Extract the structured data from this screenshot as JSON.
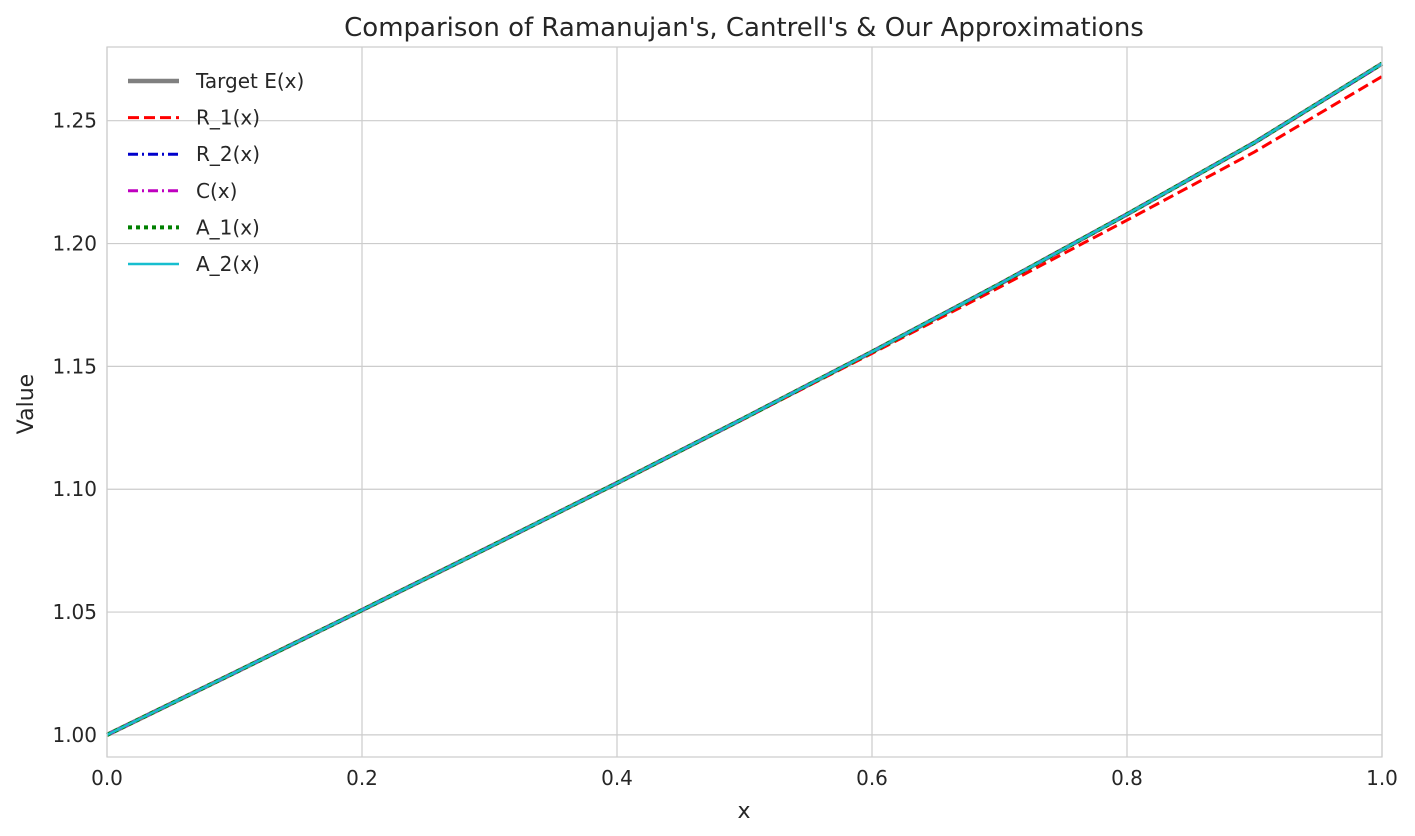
{
  "chart_data": {
    "type": "line",
    "title": "Comparison of Ramanujan's, Cantrell's & Our Approximations",
    "xlabel": "x",
    "ylabel": "Value",
    "xlim": [
      0.0,
      1.0
    ],
    "ylim": [
      0.991,
      1.28
    ],
    "xticks": [
      "0.0",
      "0.2",
      "0.4",
      "0.6",
      "0.8",
      "1.0"
    ],
    "yticks": [
      "1.00",
      "1.05",
      "1.10",
      "1.15",
      "1.20",
      "1.25"
    ],
    "grid": true,
    "legend_position": "top-left",
    "x": [
      0.0,
      0.1,
      0.2,
      0.3,
      0.4,
      0.5,
      0.6,
      0.7,
      0.8,
      0.9,
      1.0
    ],
    "series": [
      {
        "name": "Target E(x)",
        "color": "#808080",
        "style": "solid-thick",
        "values": [
          1.0,
          1.0253,
          1.0508,
          1.0765,
          1.1025,
          1.129,
          1.1559,
          1.1835,
          1.2119,
          1.2411,
          1.2732
        ]
      },
      {
        "name": "R_1(x)",
        "color": "#ff0000",
        "style": "dashed",
        "values": [
          1.0,
          1.0253,
          1.0508,
          1.0765,
          1.1025,
          1.1288,
          1.1553,
          1.1822,
          1.2095,
          1.2373,
          1.268
        ]
      },
      {
        "name": "R_2(x)",
        "color": "#0000cc",
        "style": "dashdot",
        "values": [
          1.0,
          1.0253,
          1.0508,
          1.0765,
          1.1025,
          1.129,
          1.1559,
          1.1835,
          1.2119,
          1.2411,
          1.273
        ]
      },
      {
        "name": "C(x)",
        "color": "#bf00bf",
        "style": "dashdot",
        "values": [
          1.0,
          1.0253,
          1.0508,
          1.0765,
          1.1025,
          1.129,
          1.1559,
          1.1835,
          1.2119,
          1.2411,
          1.2731
        ]
      },
      {
        "name": "A_1(x)",
        "color": "#008000",
        "style": "dotted",
        "values": [
          1.0,
          1.0253,
          1.0508,
          1.0765,
          1.1025,
          1.129,
          1.1559,
          1.1835,
          1.2119,
          1.2411,
          1.2732
        ]
      },
      {
        "name": "A_2(x)",
        "color": "#17becf",
        "style": "solid",
        "values": [
          1.0,
          1.0253,
          1.0508,
          1.0765,
          1.1025,
          1.129,
          1.1559,
          1.1835,
          1.2119,
          1.2411,
          1.2732
        ]
      }
    ]
  }
}
